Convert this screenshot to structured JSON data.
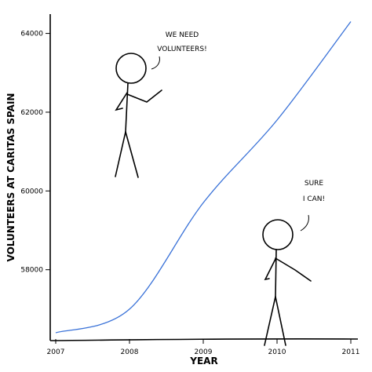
{
  "chart_data": {
    "type": "line",
    "xlabel": "YEAR",
    "ylabel": "VOLUNTEERS AT CARITAS SPAIN",
    "x": [
      2007,
      2008,
      2009,
      2010,
      2011
    ],
    "series": [
      {
        "values": [
          56400,
          57000,
          59700,
          61800,
          64300
        ]
      }
    ],
    "xlim": [
      2007,
      2011
    ],
    "ylim": [
      56200,
      64450
    ],
    "x_ticks": [
      "2007",
      "2008",
      "2009",
      "2010",
      "2011"
    ],
    "y_ticks": [
      "58000",
      "60000",
      "62000",
      "64000"
    ],
    "y_tick_values": [
      58000,
      60000,
      62000,
      64000
    ],
    "grid": false,
    "line_color": "#3a72d8",
    "annotations": [
      {
        "lines": [
          "WE NEED",
          "VOLUNTEERS!"
        ]
      },
      {
        "lines": [
          "SURE",
          "I CAN!"
        ]
      }
    ]
  }
}
